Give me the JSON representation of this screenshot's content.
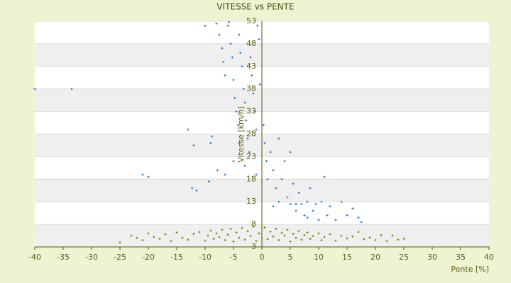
{
  "chart_data": {
    "type": "scatter",
    "title": "VITESSE vs PENTE",
    "x_label": "Pente [%]",
    "y_label": "Vitesse [km/h]",
    "xlim": [
      -40,
      40
    ],
    "xticks": [
      -40,
      -35,
      -30,
      -25,
      -20,
      -15,
      -10,
      -5,
      0,
      5,
      10,
      15,
      20,
      25,
      30,
      35,
      40
    ],
    "ylim": [
      3,
      53
    ],
    "yticks": [
      3,
      8,
      13,
      18,
      23,
      28,
      33,
      38,
      43,
      48,
      53
    ],
    "grid": true,
    "series": [
      {
        "color": "#2a7fd4",
        "x": [
          -40,
          -33.5,
          -21,
          -20,
          -13,
          -12,
          -12.3,
          -11.5,
          -10,
          -9.3,
          -9,
          -8.8,
          -8,
          -7.5,
          -7,
          -6.8,
          -6.5,
          -6,
          -5.8,
          -5.5,
          -5.2,
          -5,
          -4.8,
          -4.5,
          -4.2,
          -4,
          -3.8,
          -3.5,
          -3.2,
          -3,
          -2.8,
          -2.5,
          -2.2,
          -2,
          -1.8,
          -1.5,
          -1.2,
          -1,
          -0.8,
          -0.5,
          -0.3,
          -7.8,
          -6.5,
          -5,
          -4,
          -3,
          -1,
          0.3,
          0.5,
          0.8,
          1,
          1.5,
          2,
          2.5,
          3,
          3.5,
          4,
          4.5,
          5,
          5.5,
          6,
          6.5,
          7,
          7.5,
          8,
          8.5,
          9,
          9.5,
          10,
          10.5,
          11,
          11.5,
          12,
          13,
          14,
          15,
          16,
          17,
          17.5,
          3,
          5,
          2,
          6,
          8
        ],
        "values": [
          38,
          38,
          19,
          18.5,
          29,
          25.5,
          16,
          15.5,
          52,
          17.5,
          26,
          27.5,
          52.5,
          50,
          47,
          44,
          41,
          52,
          52.8,
          48,
          45,
          40,
          36,
          33,
          30,
          50,
          46,
          43,
          38,
          35,
          31,
          27,
          24,
          45,
          41,
          37,
          33,
          29,
          52,
          49,
          39,
          20,
          19,
          22,
          26,
          21,
          19,
          30,
          26,
          22,
          18,
          24,
          20,
          16,
          13,
          18,
          22,
          14,
          12.5,
          17,
          11,
          15,
          12.5,
          10,
          13,
          16,
          11,
          12.5,
          9,
          13,
          18.5,
          10,
          12,
          9,
          13,
          10,
          11.5,
          9.5,
          8.5,
          27,
          24,
          12,
          12.5,
          9.5
        ]
      },
      {
        "color": "#7a8a10",
        "x": [
          -25,
          -23,
          -22,
          -21,
          -20,
          -19,
          -18,
          -17,
          -16,
          -15,
          -14,
          -13,
          -12,
          -11,
          -10,
          -9.5,
          -9,
          -8.5,
          -8,
          -7.5,
          -7,
          -6.5,
          -6,
          -5.5,
          -5,
          -4.5,
          -4,
          -3.5,
          -3,
          -2.5,
          -2,
          -1.5,
          -1,
          -0.5,
          0,
          0.5,
          1,
          1.5,
          2,
          2.5,
          3,
          3.5,
          4,
          4.5,
          5,
          5.5,
          6,
          6.5,
          7,
          7.5,
          8,
          8.5,
          9,
          10,
          10.5,
          11,
          12,
          13,
          14,
          15,
          16,
          17,
          18,
          19,
          20,
          21,
          22,
          23,
          24,
          25
        ],
        "values": [
          4,
          5.5,
          5,
          4.5,
          6,
          5.2,
          4.8,
          5.8,
          4.3,
          6.2,
          5,
          4.6,
          5.9,
          6.3,
          4.4,
          5.5,
          6.6,
          4.8,
          6,
          5.2,
          6.8,
          4.5,
          5.7,
          7,
          4.2,
          6.2,
          5,
          7.2,
          4.6,
          6.5,
          5.4,
          7.5,
          4.3,
          6,
          5,
          7.3,
          4.7,
          6.4,
          5.3,
          7,
          4.5,
          6.1,
          5.5,
          6.8,
          4.2,
          5.9,
          5,
          6.5,
          4.6,
          5.6,
          6.2,
          4.8,
          5.4,
          6,
          4.5,
          5.2,
          5.8,
          4.4,
          5.5,
          4.9,
          5.3,
          6.3,
          4.7,
          5.1,
          4.5,
          5.6,
          4.3,
          5.5,
          4.6,
          4.8
        ]
      }
    ]
  }
}
